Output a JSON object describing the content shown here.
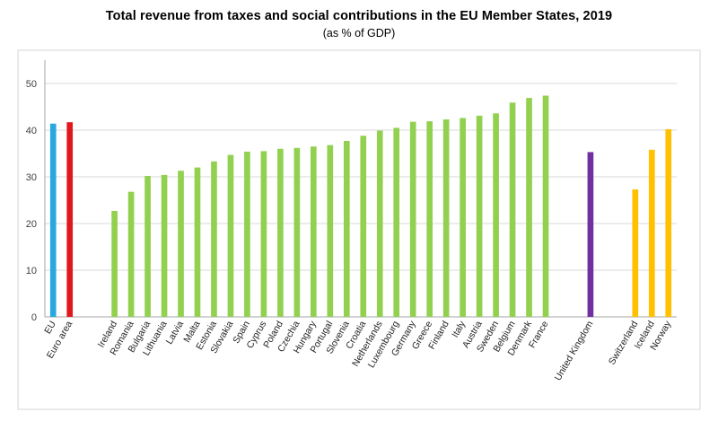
{
  "chart_data": {
    "type": "bar",
    "title": "Total revenue from taxes and social contributions in the EU Member States, 2019",
    "subtitle": "(as % of GDP)",
    "xlabel": "",
    "ylabel": "",
    "ylim": [
      0,
      50
    ],
    "yticks": [
      0,
      10,
      20,
      30,
      40,
      50
    ],
    "grid": true,
    "legend": "none",
    "groups": [
      {
        "name": "aggregates",
        "color": "",
        "categories": [
          "EU",
          "Euro area"
        ],
        "values": [
          41.4,
          41.7
        ],
        "colors": [
          "#29a8e0",
          "#e2171c"
        ]
      },
      {
        "name": "member_states",
        "color": "#92d050",
        "categories": [
          "Ireland",
          "Romania",
          "Bulgaria",
          "Lithuania",
          "Latvia",
          "Malta",
          "Estonia",
          "Slovakia",
          "Spain",
          "Cyprus",
          "Poland",
          "Czechia",
          "Hungary",
          "Portugal",
          "Slovenia",
          "Croatia",
          "Netherlands",
          "Luxembourg",
          "Germany",
          "Greece",
          "Finland",
          "Italy",
          "Austria",
          "Sweden",
          "Belgium",
          "Denmark",
          "France"
        ],
        "values": [
          22.7,
          26.8,
          30.2,
          30.4,
          31.3,
          32.0,
          33.3,
          34.7,
          35.4,
          35.5,
          36.0,
          36.2,
          36.5,
          36.8,
          37.7,
          38.8,
          39.9,
          40.5,
          41.8,
          41.9,
          42.3,
          42.6,
          43.1,
          43.6,
          45.9,
          46.9,
          47.4
        ]
      },
      {
        "name": "united_kingdom",
        "color": "#7030a0",
        "categories": [
          "United Kingdom"
        ],
        "values": [
          35.3
        ]
      },
      {
        "name": "efta",
        "color": "#ffc000",
        "categories": [
          "Switzerland",
          "Iceland",
          "Norway"
        ],
        "values": [
          27.3,
          35.8,
          40.2
        ]
      }
    ]
  }
}
